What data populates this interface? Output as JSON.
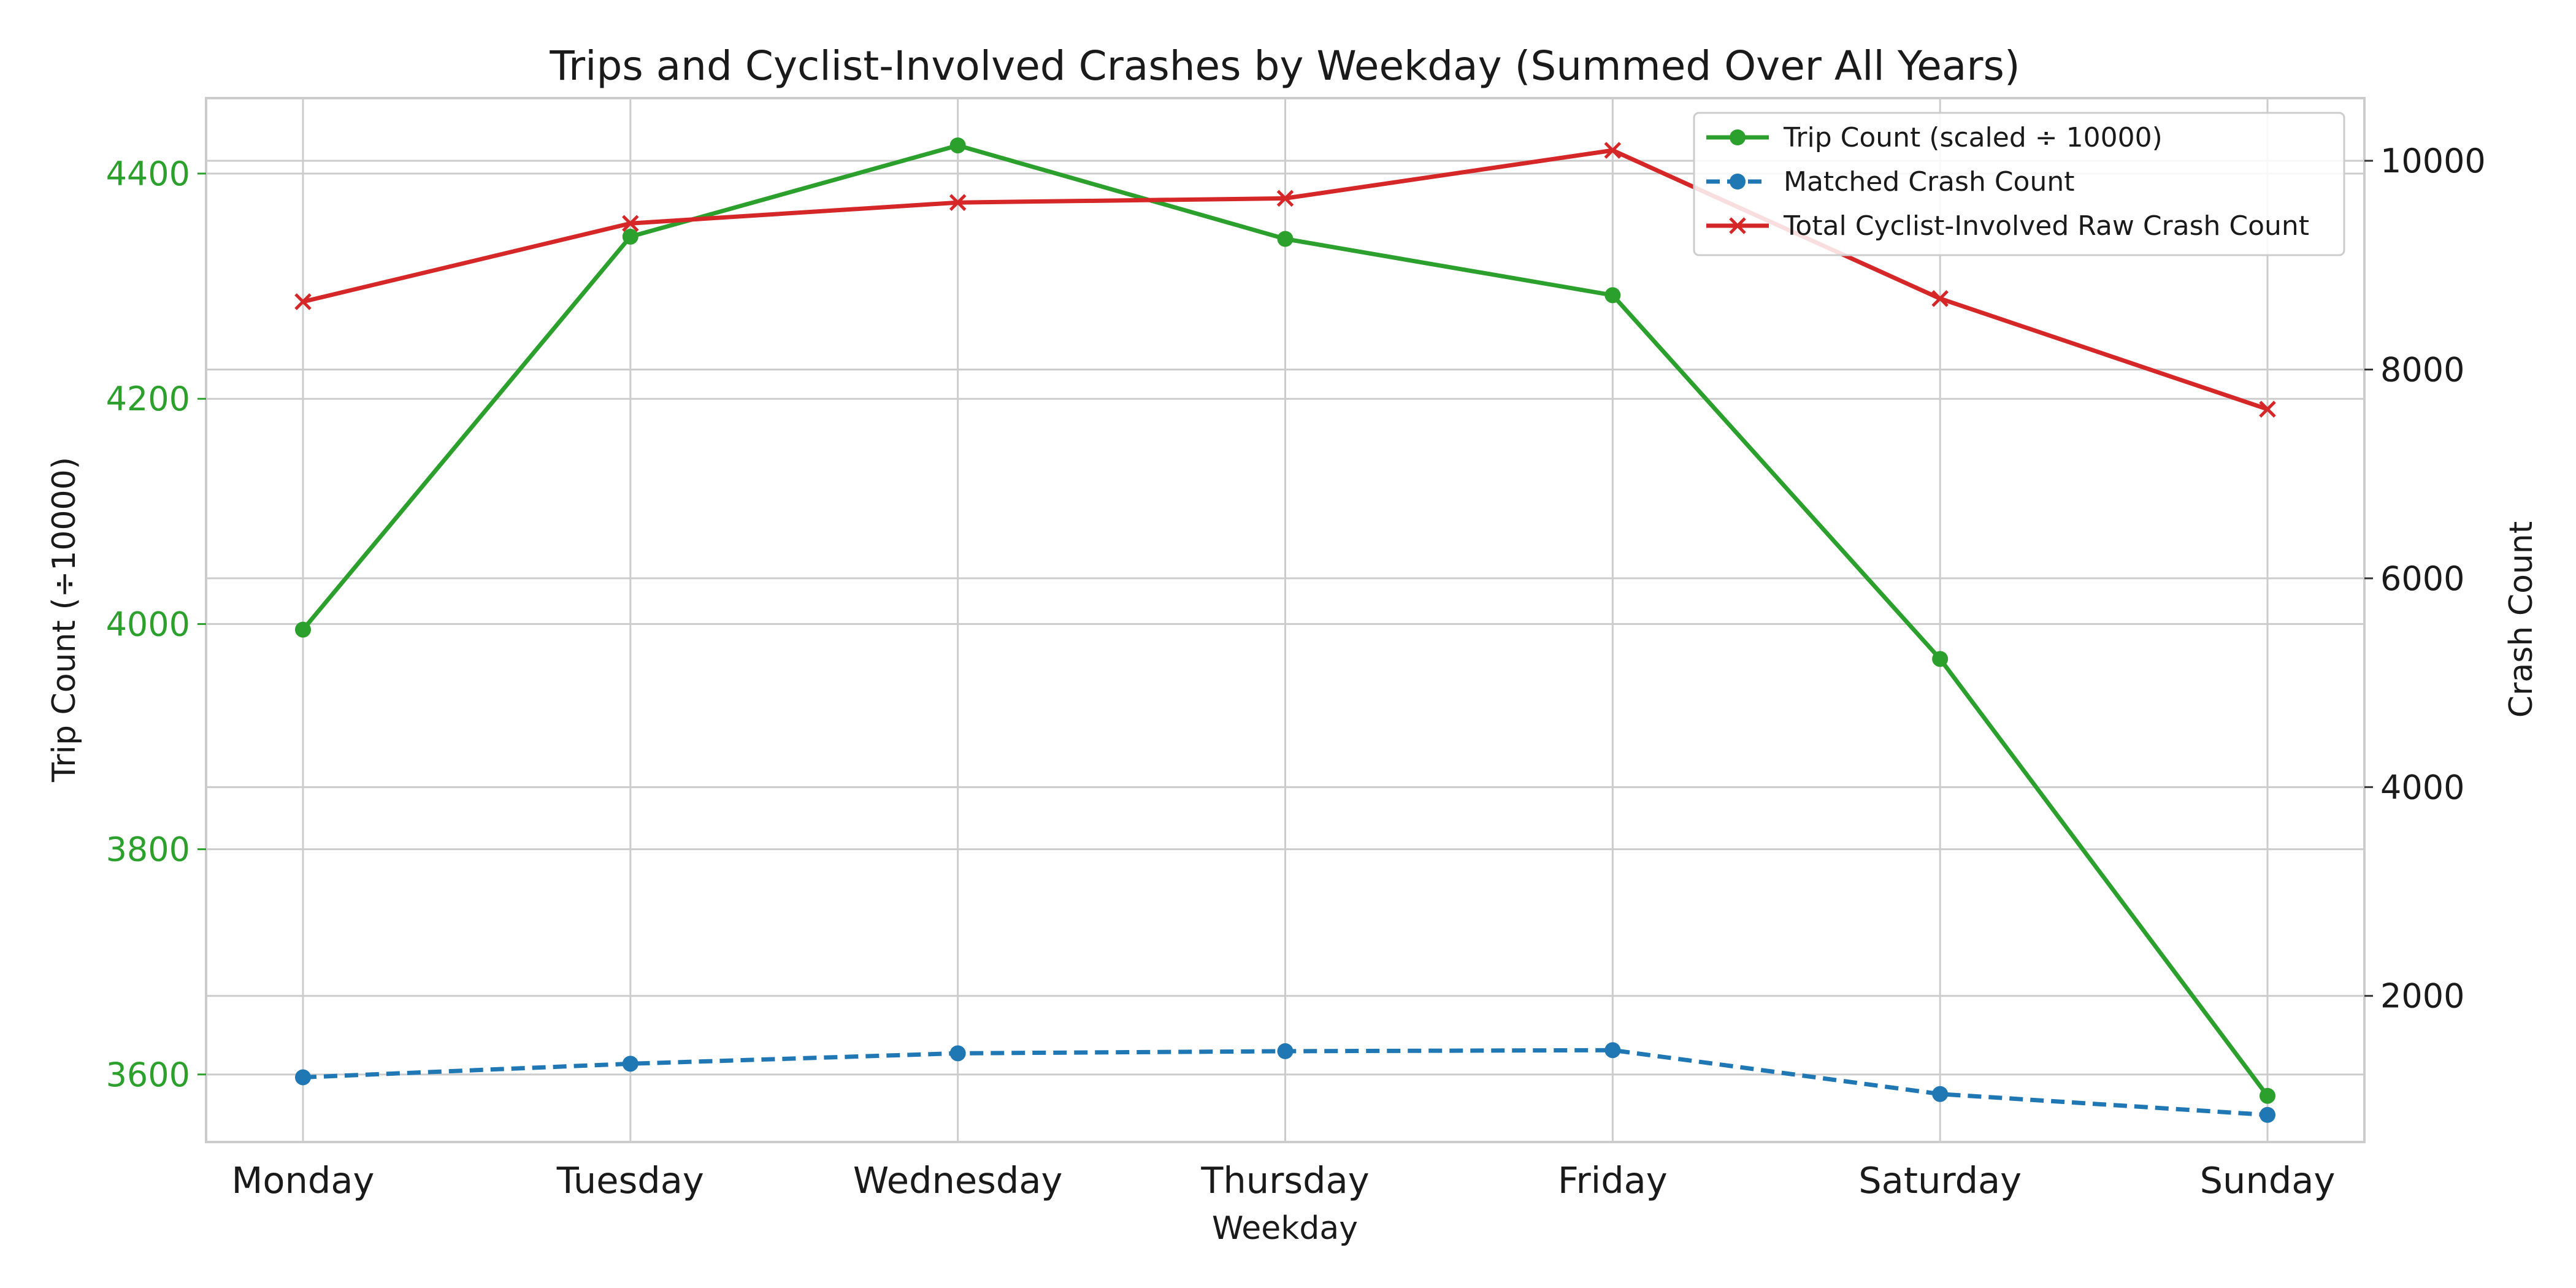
{
  "chart_data": {
    "type": "line",
    "title": "Trips and Cyclist-Involved Crashes by Weekday (Summed Over All Years)",
    "xlabel": "Weekday",
    "ylabel_left": "Trip Count (÷10000)",
    "ylabel_right": "Crash Count",
    "categories": [
      "Monday",
      "Tuesday",
      "Wednesday",
      "Thursday",
      "Friday",
      "Saturday",
      "Sunday"
    ],
    "ylim_left": [
      3540,
      4467
    ],
    "ylim_right": [
      600,
      10600
    ],
    "yticks_left": [
      "3600",
      "3800",
      "4000",
      "4200",
      "4400"
    ],
    "yticks_right": [
      "2000",
      "4000",
      "6000",
      "8000",
      "10000"
    ],
    "grid": true,
    "legend_position": "top-right",
    "series": [
      {
        "name": "Trip Count (scaled ÷ 10000)",
        "axis": "left",
        "color": "#2ca02c",
        "marker": "circle",
        "style": "solid",
        "values": [
          3995,
          4344,
          4425,
          4342,
          4292,
          3969,
          3581
        ]
      },
      {
        "name": "Matched Crash Count",
        "axis": "right",
        "color": "#1f77b4",
        "marker": "circle",
        "style": "dashed",
        "values": [
          1220,
          1350,
          1450,
          1470,
          1480,
          1060,
          860
        ]
      },
      {
        "name": "Total Cyclist-Involved Raw Crash Count",
        "axis": "right",
        "color": "#d62728",
        "marker": "x",
        "style": "solid",
        "values": [
          8650,
          9400,
          9600,
          9640,
          10100,
          8680,
          7620
        ]
      }
    ]
  }
}
